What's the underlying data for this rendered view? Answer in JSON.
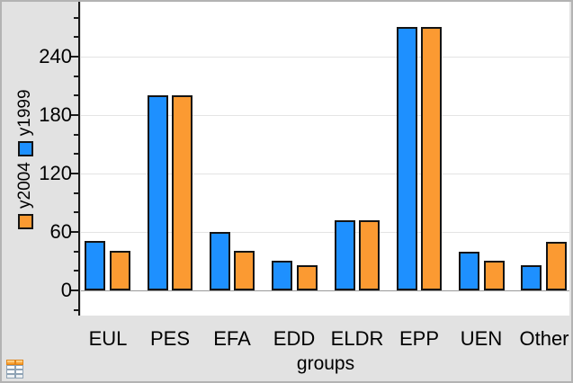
{
  "window": {
    "margin_background": "#e2e2e2",
    "plot_background": "#ffffff",
    "border_color": "#b3b3b3"
  },
  "colors": {
    "series_blue": "#1e90ff",
    "series_orange": "#fb9a32",
    "gridline": "#e4e4e4",
    "baseline": "#999999",
    "axis": "#1a1a1a",
    "text": "#000000"
  },
  "legend": {
    "items": [
      {
        "label": "y2004",
        "color": "#fb9a32"
      },
      {
        "label": "y1999",
        "color": "#1e90ff"
      }
    ],
    "position": "left margin, rotated 90° (reads bottom to top)"
  },
  "chart_data": {
    "type": "bar",
    "categories": [
      "EUL",
      "PES",
      "EFA",
      "EDD",
      "ELDR",
      "EPP",
      "UEN",
      "Other"
    ],
    "series": [
      {
        "name": "y1999",
        "color": "#1e90ff",
        "values": [
          51,
          200,
          60,
          30,
          72,
          270,
          40,
          26
        ]
      },
      {
        "name": "y2004",
        "color": "#fb9a32",
        "values": [
          41,
          200,
          41,
          26,
          72,
          270,
          30,
          50
        ]
      }
    ],
    "series_display_order": "blue (y1999) left bar, orange (y2004) right bar in each pair",
    "title": "",
    "xlabel": "groups",
    "ylabel": "y2004 y1999",
    "yticks": [
      0,
      60,
      120,
      180,
      240
    ],
    "ytick_labels": [
      "0",
      "60",
      "120",
      "180",
      "240"
    ],
    "minor_tick_step": 20,
    "minor_tick_range": [
      -20,
      280
    ],
    "ylim": [
      -25,
      296
    ],
    "grid": "horizontal gridlines at major ticks",
    "legend_position": "left"
  },
  "footer": {
    "spreadsheet_icon": "lists-and-spreadsheet-table-icon"
  }
}
